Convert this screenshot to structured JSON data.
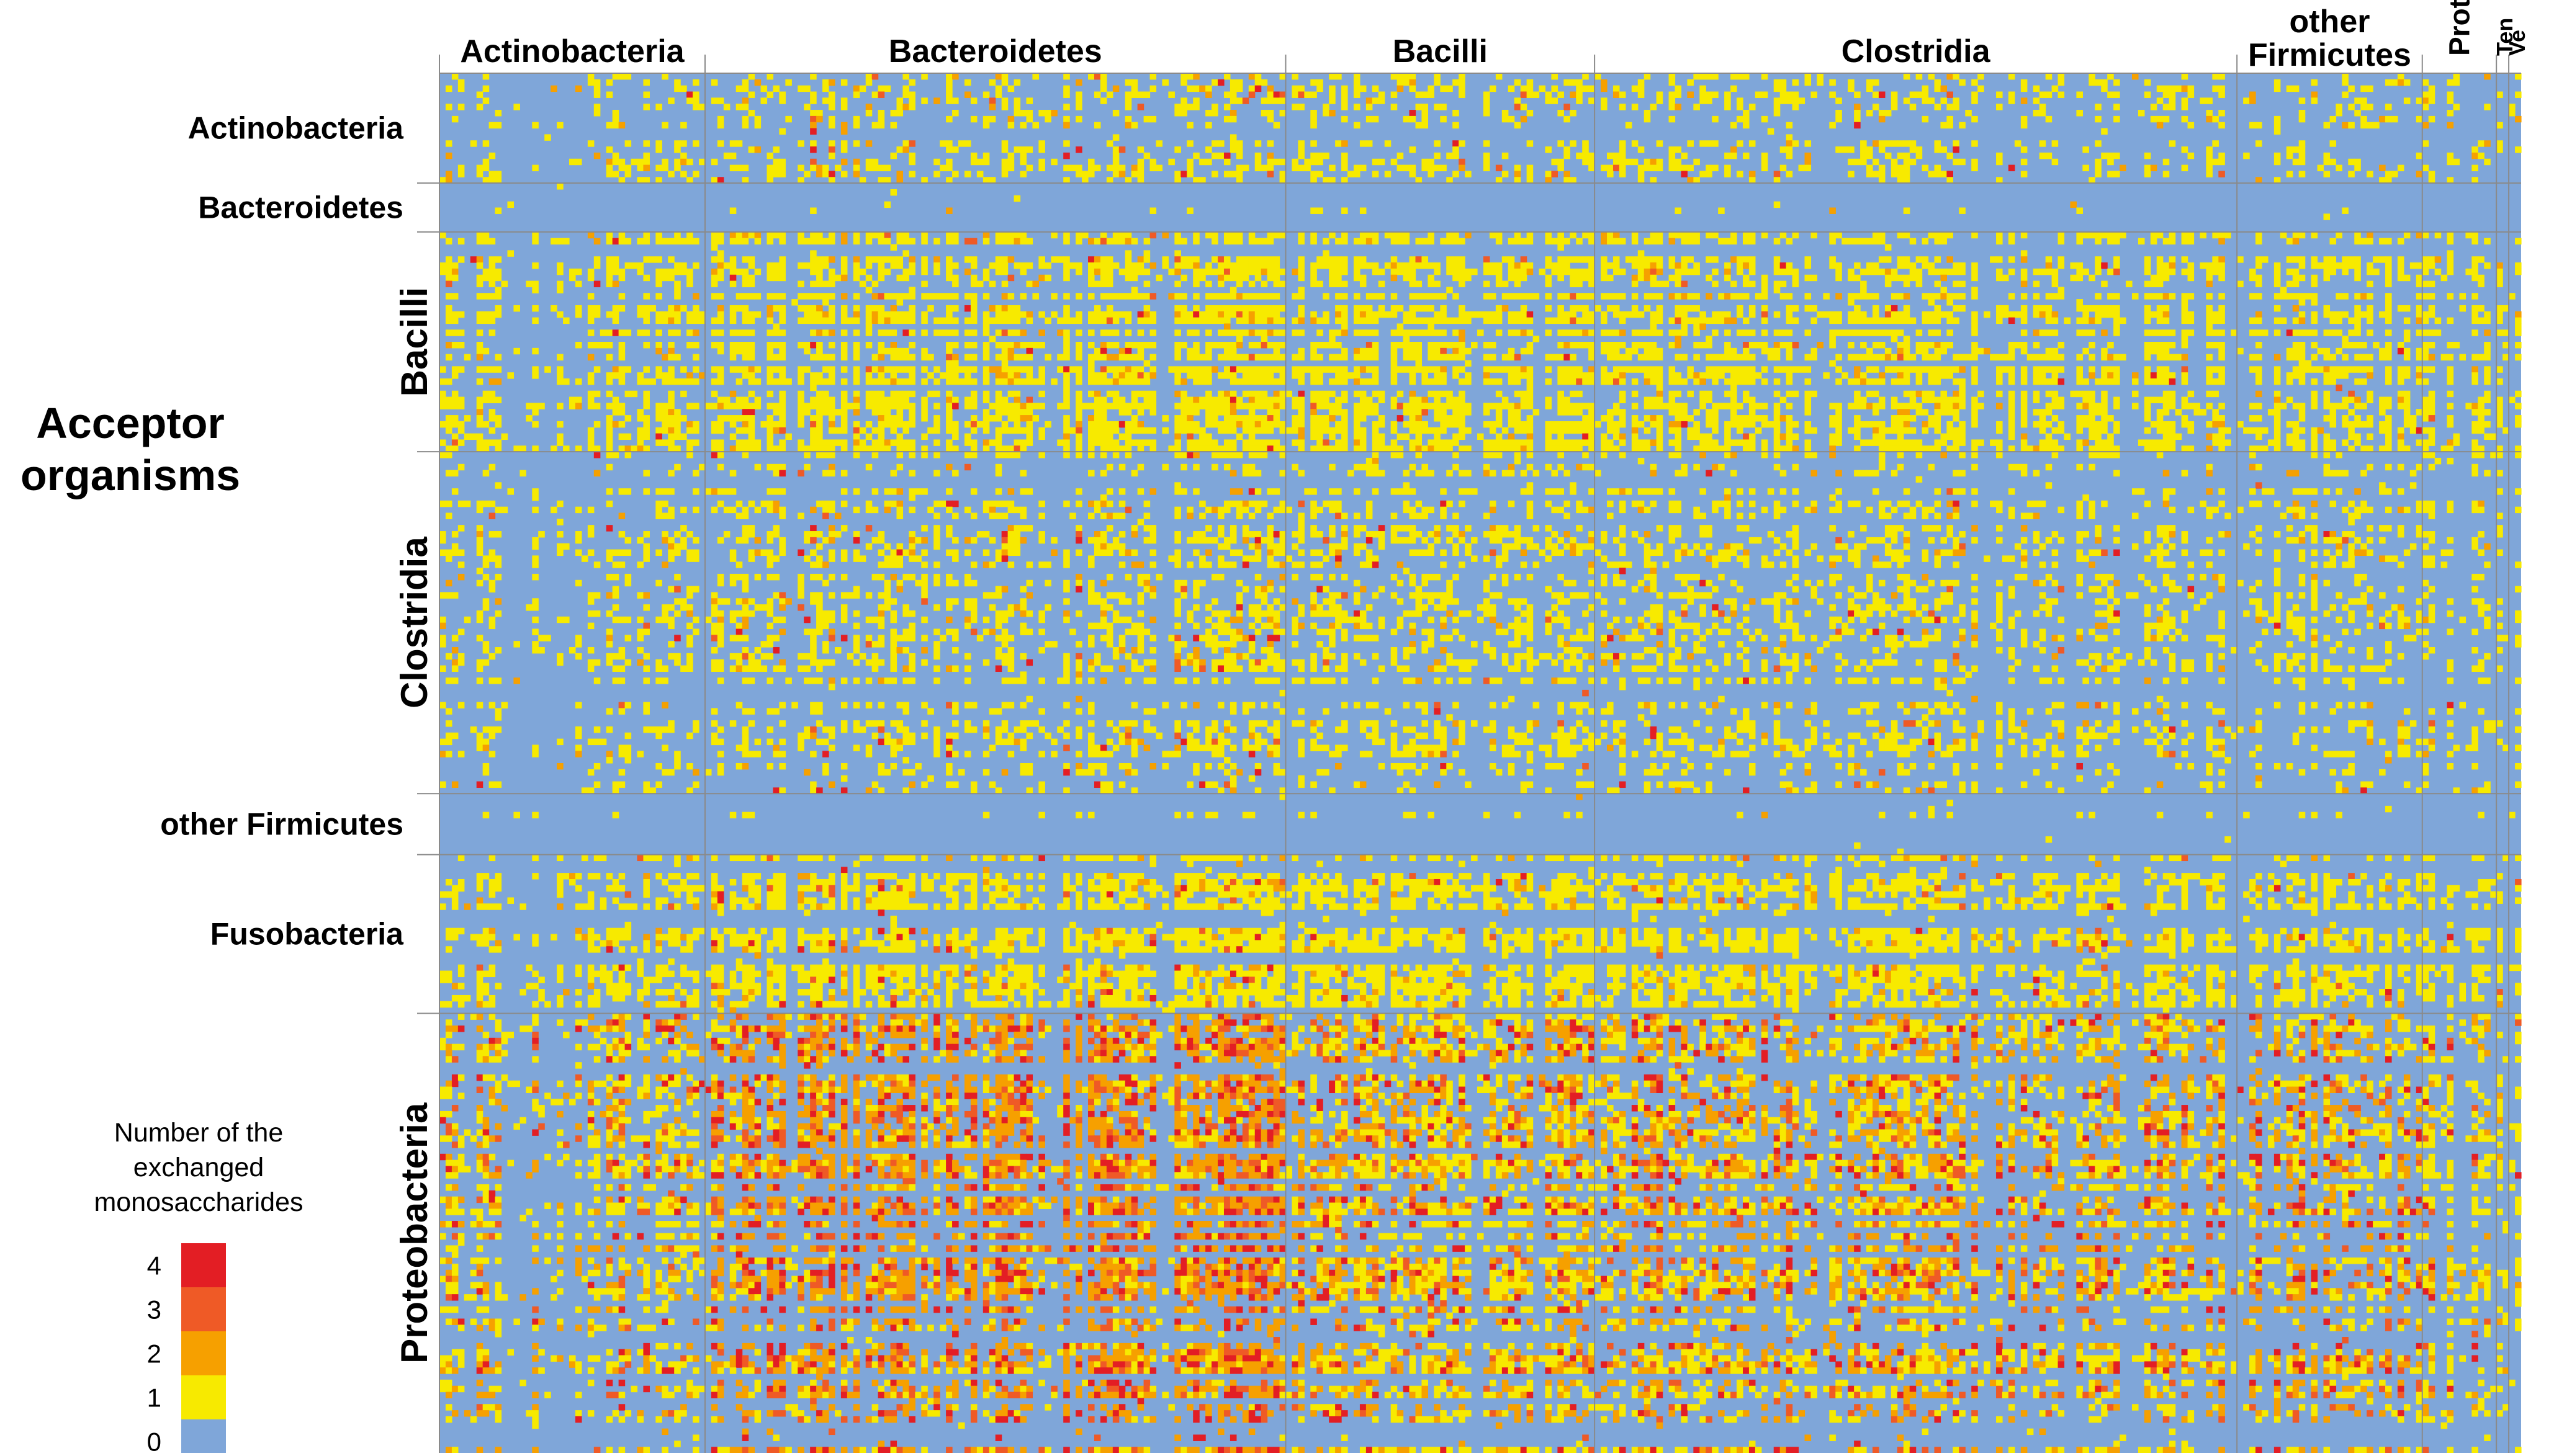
{
  "chart_data": {
    "type": "heatmap",
    "row_axis_title": [
      "Acceptor",
      "organisms"
    ],
    "column_groups": [
      {
        "label": [
          "Actinobacteria"
        ],
        "w": 43
      },
      {
        "label": [
          "Bacteroidetes"
        ],
        "w": 94
      },
      {
        "label": [
          "Bacilli"
        ],
        "w": 50
      },
      {
        "label": [
          "Clostridia"
        ],
        "w": 104
      },
      {
        "label": [
          "other",
          "Firmicutes"
        ],
        "w": 30
      },
      {
        "label": [
          "Prot"
        ],
        "w": 12
      },
      {
        "label": [
          "Ten"
        ],
        "w": 2
      },
      {
        "label": [
          "Ve"
        ],
        "w": 2
      }
    ],
    "row_groups": [
      {
        "label": "Actinobacteria",
        "h": 18,
        "rotated": false
      },
      {
        "label": "Bacteroidetes",
        "h": 8,
        "rotated": false
      },
      {
        "label": "Bacilli",
        "h": 36,
        "rotated": true
      },
      {
        "label": "Clostridia",
        "h": 56,
        "rotated": true
      },
      {
        "label": "other Firmicutes",
        "h": 10,
        "rotated": false
      },
      {
        "label": "Fusobacteria",
        "h": 26,
        "rotated": false
      },
      {
        "label": "Proteobacteria",
        "h": 72,
        "rotated": true
      }
    ],
    "legend": {
      "title": [
        "Number of the",
        "exchanged",
        "monosaccharides"
      ],
      "levels": [
        {
          "value": 4,
          "label": "4",
          "color": "#e31e24"
        },
        {
          "value": 3,
          "label": "3",
          "color": "#ef5a26"
        },
        {
          "value": 2,
          "label": "2",
          "color": "#f6a000"
        },
        {
          "value": 1,
          "label": "1",
          "color": "#f7ea00"
        },
        {
          "value": 0,
          "label": "0",
          "color": "#7fa6d9"
        }
      ]
    },
    "grid_line_color": "#8a8a8a",
    "matrix_values": "mostly 0 (blue) in Actinobacteria/Bacteroidetes acceptor rows; mostly 1 (yellow) in Bacilli and Fusobacteria rows; 2-4 (orange/red) concentrated in Proteobacteria rows under Bacteroidetes donor columns"
  }
}
